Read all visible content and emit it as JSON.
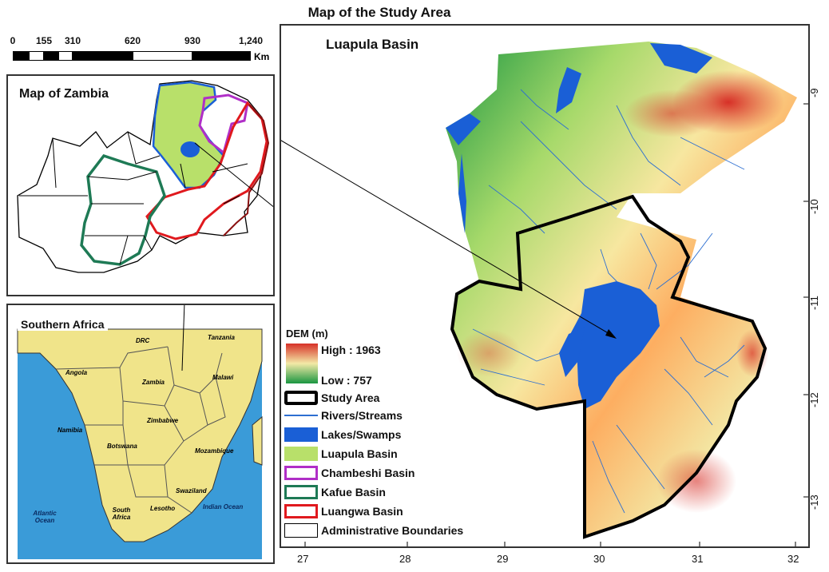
{
  "title": "Map of the Study Area",
  "scalebar": {
    "ticks": [
      "0",
      "155",
      "310",
      "620",
      "930",
      "1,240"
    ],
    "unit": "Km"
  },
  "zambia_panel": {
    "title": "Map of Zambia"
  },
  "southern_africa_panel": {
    "title": "Southern Africa",
    "labels": [
      "DRC",
      "Tanzania",
      "Angola",
      "Zambia",
      "Malawi",
      "Namibia",
      "Zimbabwe",
      "Botswana",
      "Mozambique",
      "Swaziland",
      "Lesotho",
      "South Africa",
      "Atlantic Ocean",
      "Indian Ocean"
    ]
  },
  "main_panel": {
    "title": "Luapula Basin",
    "x_ticks": [
      "27",
      "28",
      "29",
      "30",
      "31",
      "32"
    ],
    "y_ticks": [
      "-9",
      "-10",
      "-11",
      "-12",
      "-13"
    ]
  },
  "legend": {
    "title": "DEM (m)",
    "high": "High : 1963",
    "low": "Low : 757",
    "items": [
      {
        "label": "Study Area"
      },
      {
        "label": "Rivers/Streams"
      },
      {
        "label": "Lakes/Swamps"
      },
      {
        "label": "Luapula Basin"
      },
      {
        "label": "Chambeshi Basin"
      },
      {
        "label": "Kafue Basin"
      },
      {
        "label": "Luangwa Basin"
      },
      {
        "label": "Administrative Boundaries"
      }
    ]
  },
  "colors": {
    "lake": "#1a5fd6",
    "luapula_fill": "#b8e06a",
    "chambeshi": "#b02fc7",
    "kafue": "#1e7a55",
    "luangwa": "#e0191e",
    "study_area": "#000000",
    "ocean": "#3a9bd8",
    "land": "#f0e48a",
    "dem_high": "#d73027",
    "dem_mid": "#f3e9a6",
    "dem_low": "#1a9641"
  }
}
